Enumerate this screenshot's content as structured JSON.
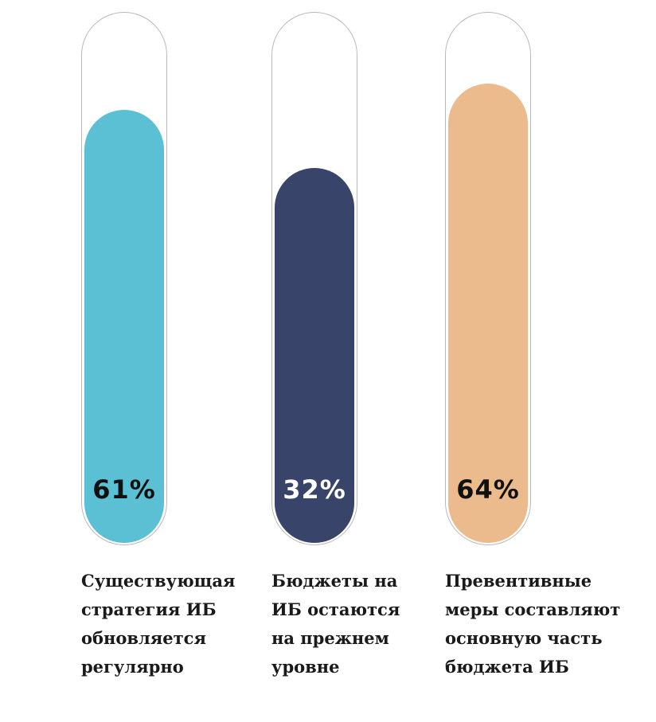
{
  "chart_data": {
    "type": "bar",
    "scale_max": 100,
    "bars": [
      {
        "value_label": "61%",
        "label": "Существующая\nстратегия ИБ\nобновляется\nрегулярно",
        "color": "#5bc0d4",
        "text_color": "#111111",
        "level": 0.82
      },
      {
        "value_label": "32%",
        "label": "Бюджеты на\nИБ остаются\nна прежнем\nуровне",
        "color": "#39446b",
        "text_color": "#ffffff",
        "level": 0.71
      },
      {
        "value_label": "64%",
        "label": "Превентивные\nмеры составляют\nосновную часть\nбюджета ИБ",
        "color": "#ebbb8e",
        "text_color": "#111111",
        "level": 0.87
      }
    ]
  }
}
